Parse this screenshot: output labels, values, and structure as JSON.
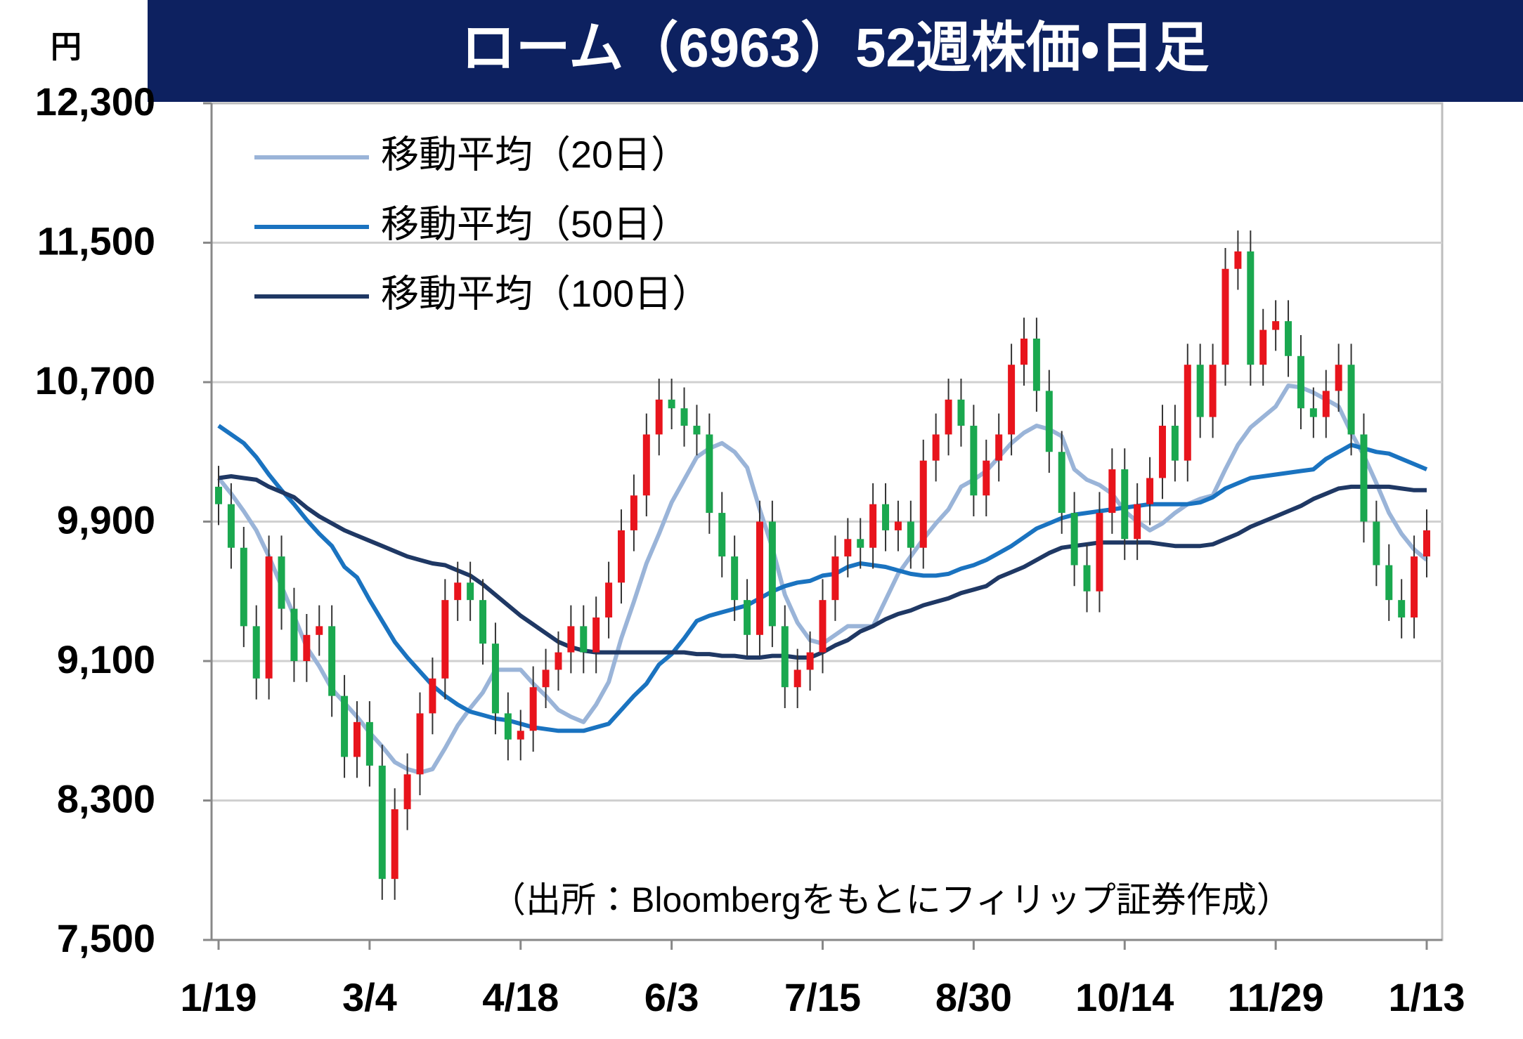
{
  "chart_data": {
    "type": "candlestick",
    "title": "ローム（6963）52週株価・日足",
    "y_label": "円",
    "note": "（出所：Bloombergをもとにフィリップ証券作成）",
    "categories": [
      "1/19",
      null,
      null,
      null,
      null,
      null,
      null,
      null,
      null,
      null,
      null,
      null,
      "3/4",
      null,
      null,
      null,
      null,
      null,
      null,
      null,
      null,
      null,
      null,
      null,
      "4/18",
      null,
      null,
      null,
      null,
      null,
      null,
      null,
      null,
      null,
      null,
      null,
      "6/3",
      null,
      null,
      null,
      null,
      null,
      null,
      null,
      null,
      null,
      null,
      null,
      "7/15",
      null,
      null,
      null,
      null,
      null,
      null,
      null,
      null,
      null,
      null,
      null,
      "8/30",
      null,
      null,
      null,
      null,
      null,
      null,
      null,
      null,
      null,
      null,
      null,
      "10/14",
      null,
      null,
      null,
      null,
      null,
      null,
      null,
      null,
      null,
      null,
      null,
      "11/29",
      null,
      null,
      null,
      null,
      null,
      null,
      null,
      null,
      null,
      null,
      null,
      "1/13"
    ],
    "open": [
      10100,
      10000,
      9750,
      9300,
      9000,
      9700,
      9400,
      9100,
      9250,
      9300,
      8900,
      8550,
      8750,
      8500,
      7850,
      8250,
      8450,
      8800,
      9000,
      9450,
      9550,
      9450,
      9200,
      8800,
      8650,
      8700,
      8950,
      9050,
      9150,
      9300,
      9150,
      9350,
      9550,
      9850,
      10050,
      10400,
      10600,
      10550,
      10450,
      10400,
      9950,
      9700,
      9450,
      9250,
      9900,
      9300,
      8950,
      9050,
      9150,
      9450,
      9700,
      9800,
      9750,
      10000,
      9850,
      9900,
      9750,
      10250,
      10400,
      10600,
      10450,
      10050,
      10250,
      10400,
      10800,
      10950,
      10650,
      10300,
      9950,
      9650,
      9500,
      9950,
      10200,
      9800,
      10000,
      10150,
      10450,
      10250,
      10800,
      10500,
      10800,
      11350,
      11450,
      10800,
      11000,
      11050,
      10850,
      10550,
      10500,
      10650,
      10800,
      10400,
      9900,
      9650,
      9450,
      9350,
      9700
    ],
    "high": [
      10220,
      10120,
      9870,
      9420,
      9820,
      9820,
      9520,
      9370,
      9420,
      9420,
      9020,
      8870,
      8870,
      8620,
      8370,
      8570,
      8920,
      9120,
      9570,
      9670,
      9670,
      9570,
      9320,
      8920,
      8820,
      9070,
      9170,
      9270,
      9420,
      9420,
      9470,
      9670,
      9970,
      10170,
      10520,
      10720,
      10720,
      10670,
      10570,
      10520,
      10070,
      9820,
      9570,
      10020,
      10020,
      9420,
      9170,
      9270,
      9570,
      9820,
      9920,
      9920,
      10120,
      10120,
      10020,
      10020,
      10370,
      10520,
      10720,
      10720,
      10570,
      10370,
      10520,
      10920,
      11070,
      11070,
      10770,
      10420,
      10070,
      9770,
      10070,
      10320,
      10320,
      10120,
      10270,
      10570,
      10570,
      10920,
      10920,
      10920,
      11470,
      11570,
      11570,
      11120,
      11170,
      11170,
      10970,
      10670,
      10770,
      10920,
      10920,
      10520,
      10020,
      9770,
      9570,
      9820,
      9970
    ],
    "low": [
      9880,
      9630,
      9180,
      8880,
      8880,
      9280,
      8980,
      8980,
      9130,
      8780,
      8430,
      8430,
      8380,
      7730,
      7730,
      8130,
      8330,
      8680,
      8880,
      9330,
      9330,
      9080,
      8680,
      8530,
      8530,
      8580,
      8830,
      8930,
      9030,
      9030,
      9030,
      9230,
      9430,
      9730,
      9930,
      10280,
      10430,
      10330,
      10280,
      9830,
      9580,
      9330,
      9130,
      9130,
      9180,
      8830,
      8830,
      8930,
      9030,
      9330,
      9580,
      9630,
      9630,
      9730,
      9730,
      9630,
      9630,
      10130,
      10280,
      10330,
      9930,
      9930,
      10130,
      10280,
      10680,
      10530,
      10180,
      9830,
      9530,
      9380,
      9380,
      9830,
      9680,
      9680,
      9880,
      10030,
      10130,
      10130,
      10380,
      10380,
      10680,
      11230,
      10680,
      10680,
      10880,
      10730,
      10430,
      10380,
      10380,
      10530,
      10280,
      9780,
      9530,
      9330,
      9230,
      9230,
      9580
    ],
    "close": [
      10000,
      9750,
      9300,
      9000,
      9700,
      9400,
      9100,
      9250,
      9300,
      8900,
      8550,
      8750,
      8500,
      7850,
      8250,
      8450,
      8800,
      9000,
      9450,
      9550,
      9450,
      9200,
      8800,
      8650,
      8700,
      8950,
      9050,
      9150,
      9300,
      9150,
      9350,
      9550,
      9850,
      10050,
      10400,
      10600,
      10550,
      10450,
      10400,
      9950,
      9700,
      9450,
      9250,
      9900,
      9300,
      8950,
      9050,
      9150,
      9450,
      9700,
      9800,
      9750,
      10000,
      9850,
      9900,
      9750,
      10250,
      10400,
      10600,
      10450,
      10050,
      10250,
      10400,
      10800,
      10950,
      10650,
      10300,
      9950,
      9650,
      9500,
      9950,
      10200,
      9800,
      10000,
      10150,
      10450,
      10250,
      10800,
      10500,
      10800,
      11350,
      11450,
      10800,
      11000,
      11050,
      10850,
      10550,
      10500,
      10650,
      10800,
      10400,
      9900,
      9650,
      9450,
      9350,
      9700,
      9850
    ],
    "up_color": "#e8141c",
    "down_color": "#1aa84f",
    "series": [
      {
        "name": "移動平均（20日）",
        "color": "#9ab4d8",
        "values": [
          10150,
          10060,
          9960,
          9850,
          9700,
          9530,
          9360,
          9180,
          9070,
          8940,
          8860,
          8780,
          8690,
          8610,
          8520,
          8480,
          8460,
          8480,
          8600,
          8730,
          8830,
          8920,
          9050,
          9050,
          9050,
          8970,
          8900,
          8820,
          8780,
          8750,
          8850,
          8980,
          9230,
          9440,
          9660,
          9830,
          10010,
          10140,
          10270,
          10320,
          10350,
          10300,
          10210,
          9970,
          9750,
          9480,
          9320,
          9220,
          9200,
          9250,
          9300,
          9300,
          9300,
          9450,
          9600,
          9700,
          9800,
          9890,
          9970,
          10100,
          10140,
          10190,
          10270,
          10350,
          10410,
          10450,
          10430,
          10390,
          10200,
          10140,
          10110,
          10060,
          9960,
          9900,
          9850,
          9890,
          9950,
          10000,
          10030,
          10050,
          10200,
          10340,
          10440,
          10500,
          10560,
          10680,
          10670,
          10640,
          10600,
          10560,
          10410,
          10280,
          10120,
          9950,
          9830,
          9740,
          9680
        ]
      },
      {
        "name": "移動平均（50日）",
        "color": "#1a73c0",
        "values": [
          10450,
          10400,
          10350,
          10270,
          10170,
          10080,
          10000,
          9910,
          9830,
          9760,
          9640,
          9580,
          9450,
          9330,
          9210,
          9120,
          9040,
          8960,
          8900,
          8850,
          8810,
          8790,
          8770,
          8760,
          8740,
          8720,
          8710,
          8700,
          8700,
          8700,
          8720,
          8740,
          8820,
          8900,
          8970,
          9080,
          9140,
          9230,
          9330,
          9360,
          9380,
          9400,
          9420,
          9460,
          9500,
          9530,
          9550,
          9560,
          9590,
          9600,
          9640,
          9660,
          9650,
          9640,
          9620,
          9600,
          9590,
          9590,
          9600,
          9630,
          9650,
          9680,
          9720,
          9760,
          9810,
          9860,
          9890,
          9920,
          9940,
          9950,
          9960,
          9970,
          9980,
          9990,
          10000,
          10000,
          10000,
          10000,
          10010,
          10040,
          10090,
          10120,
          10150,
          10160,
          10170,
          10180,
          10190,
          10200,
          10260,
          10300,
          10340,
          10320,
          10300,
          10290,
          10260,
          10230,
          10200
        ]
      },
      {
        "name": "移動平均（100日）",
        "color": "#1f3864",
        "values": [
          10150,
          10160,
          10150,
          10140,
          10100,
          10070,
          10040,
          9980,
          9930,
          9890,
          9850,
          9820,
          9790,
          9760,
          9730,
          9700,
          9680,
          9660,
          9650,
          9620,
          9590,
          9540,
          9480,
          9420,
          9360,
          9310,
          9260,
          9210,
          9180,
          9160,
          9150,
          9150,
          9150,
          9150,
          9150,
          9150,
          9150,
          9150,
          9140,
          9140,
          9130,
          9130,
          9120,
          9120,
          9130,
          9130,
          9120,
          9120,
          9150,
          9190,
          9220,
          9270,
          9300,
          9340,
          9370,
          9390,
          9420,
          9440,
          9460,
          9490,
          9510,
          9530,
          9580,
          9610,
          9640,
          9680,
          9720,
          9750,
          9760,
          9770,
          9780,
          9780,
          9780,
          9780,
          9780,
          9770,
          9760,
          9760,
          9760,
          9770,
          9800,
          9830,
          9870,
          9900,
          9930,
          9960,
          9990,
          10030,
          10060,
          10090,
          10100,
          10100,
          10100,
          10100,
          10090,
          10080,
          10080
        ]
      }
    ],
    "ylim": [
      7500,
      12300
    ],
    "yticks": [
      {
        "value": 7500,
        "label": "7,500"
      },
      {
        "value": 8300,
        "label": "8,300"
      },
      {
        "value": 9100,
        "label": "9,100"
      },
      {
        "value": 9900,
        "label": "9,900"
      },
      {
        "value": 10700,
        "label": "10,700"
      },
      {
        "value": 11500,
        "label": "11,500"
      },
      {
        "value": 12300,
        "label": "12,300"
      }
    ],
    "grid": true,
    "legend": "top-left"
  }
}
